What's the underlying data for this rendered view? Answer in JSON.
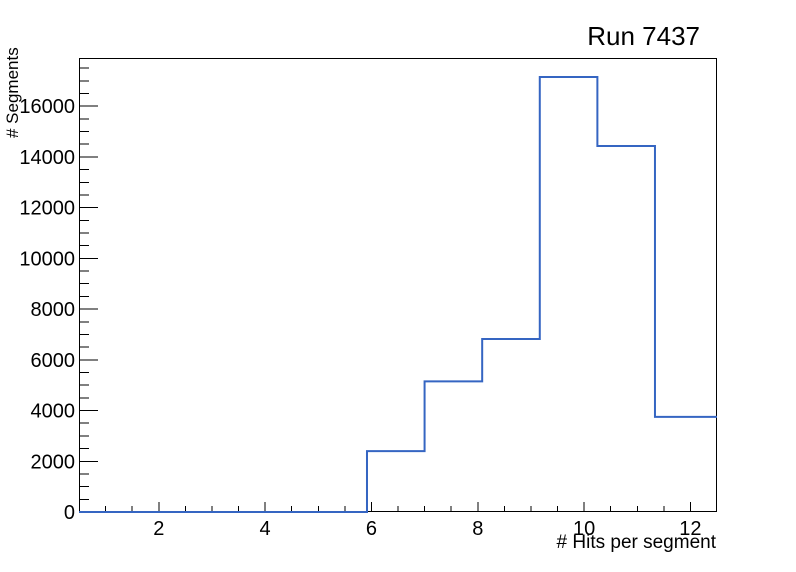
{
  "title": "Run 7437",
  "chart_data": {
    "type": "bar",
    "style": "step-histogram",
    "title": "Run 7437",
    "xlabel": "# Hits per segment",
    "ylabel": "# Segments",
    "xlim": [
      0.5,
      12.5
    ],
    "ylim": [
      0,
      17900
    ],
    "x_major_ticks": [
      2,
      4,
      6,
      8,
      10,
      12
    ],
    "x_minor_step": 0.5,
    "y_major_ticks": [
      0,
      2000,
      4000,
      6000,
      8000,
      10000,
      12000,
      14000,
      16000
    ],
    "y_minor_step": 500,
    "bin_edges": [
      0.5,
      1.5833,
      2.6667,
      3.75,
      4.8333,
      5.9167,
      7.0,
      8.0833,
      9.1667,
      10.25,
      11.3333,
      12.5
    ],
    "counts": [
      0,
      0,
      0,
      0,
      0,
      2400,
      5150,
      6820,
      17150,
      14430,
      3750
    ],
    "line_color": "#3565c2",
    "axis_color": "#000000",
    "background_color": "#ffffff",
    "grid": false,
    "legend": null,
    "ticks_inside": true
  }
}
